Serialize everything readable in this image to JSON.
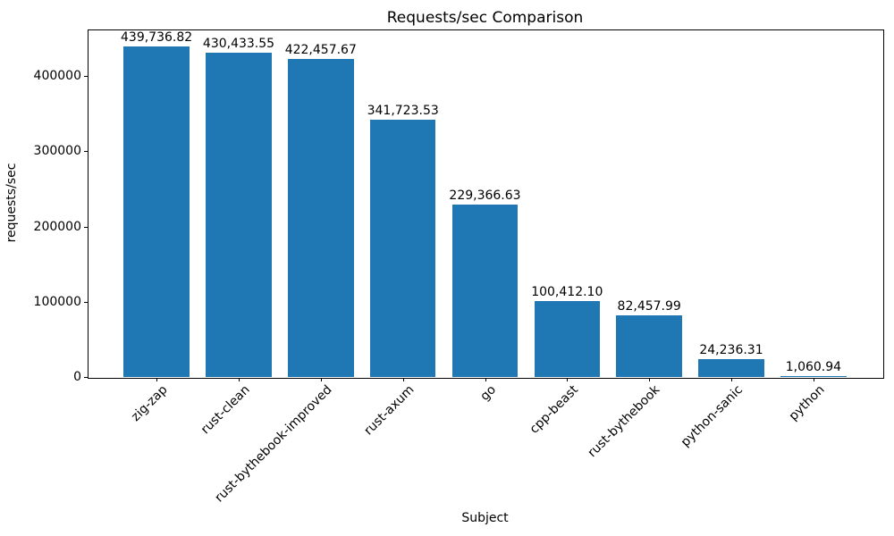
{
  "chart_data": {
    "type": "bar",
    "title": "Requests/sec Comparison",
    "xlabel": "Subject",
    "ylabel": "requests/sec",
    "categories": [
      "zig-zap",
      "rust-clean",
      "rust-bythebook-improved",
      "rust-axum",
      "go",
      "cpp-beast",
      "rust-bythebook",
      "python-sanic",
      "python"
    ],
    "values": [
      439736.82,
      430433.55,
      422457.67,
      341723.53,
      229366.63,
      100412.1,
      82457.99,
      24236.31,
      1060.94
    ],
    "bar_value_labels": [
      "439,736.82",
      "430,433.55",
      "422,457.67",
      "341,723.53",
      "229,366.63",
      "100,412.10",
      "82,457.99",
      "24,236.31",
      "1,060.94"
    ],
    "ytick_values": [
      0,
      100000,
      200000,
      300000,
      400000
    ],
    "ytick_labels": [
      "0",
      "100000",
      "200000",
      "300000",
      "400000"
    ],
    "ylim": [
      0,
      461723.66
    ],
    "xlim": [
      -0.84,
      8.84
    ],
    "bar_width_units": 0.8,
    "bar_color": "#1f77b4",
    "axis_color": "#000000",
    "background_color": "#ffffff",
    "grid": false,
    "legend_position": "none"
  }
}
